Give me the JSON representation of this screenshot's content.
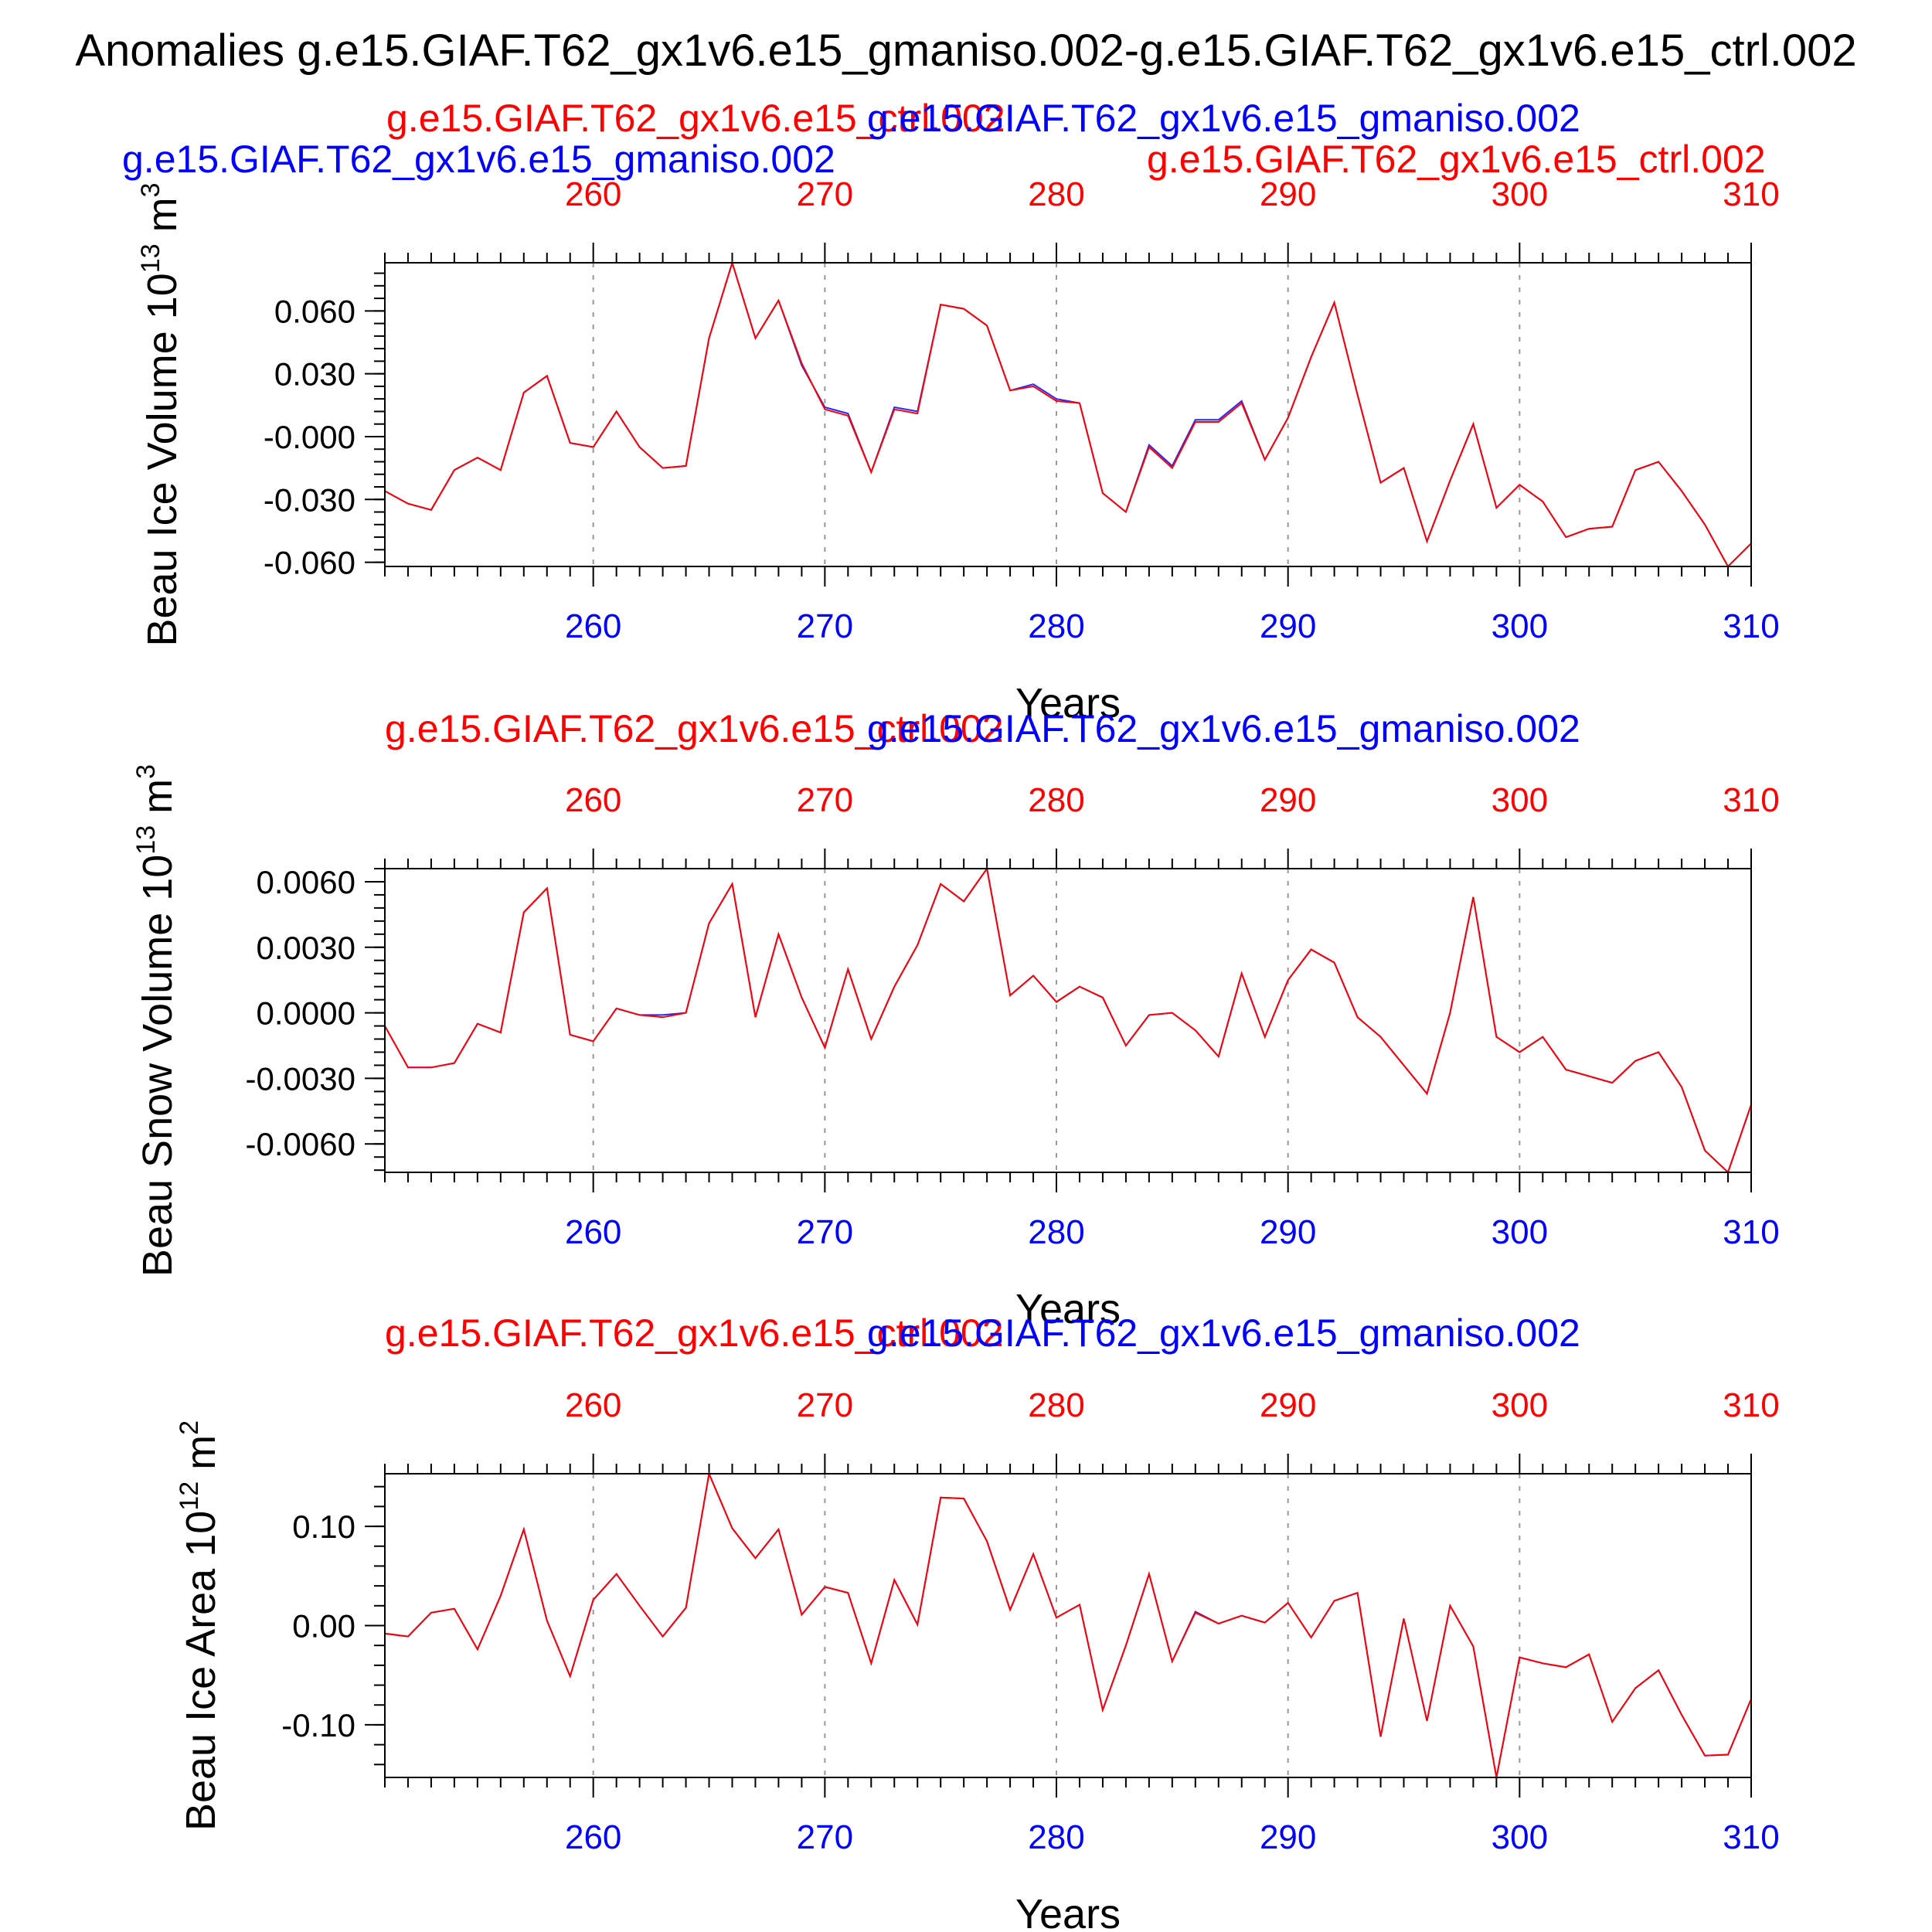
{
  "title": "Anomalies g.e15.GIAF.T62_gx1v6.e15_gmaniso.002-g.e15.GIAF.T62_gx1v6.e15_ctrl.002",
  "chart_data": [
    {
      "type": "line",
      "top_label_blue": "g.e15.GIAF.T62_gx1v6.e15_gmaniso.002",
      "top_label_red": "g.e15.GIAF.T62_gx1v6.e15_ctrl.002",
      "top_label_blue_2": "g.e15.GIAF.T62_gx1v6.e15_gmaniso.002",
      "top_label_red_2": "g.e15.GIAF.T62_gx1v6.e15_ctrl.002",
      "ylabel": "Beau Ice Volume 10",
      "ylabel_exp": "13",
      "ylabel_unit": " m",
      "ylabel_unit_exp": "3",
      "xlabel": "Years",
      "xlim": [
        251,
        310
      ],
      "ylim": [
        -0.062,
        0.083
      ],
      "xticks": [
        "260",
        "270",
        "280",
        "290",
        "300",
        "310"
      ],
      "yticks": [
        "0.060",
        "0.030",
        "-0.000",
        "-0.030",
        "-0.060"
      ],
      "ytick_values": [
        0.06,
        0.03,
        0,
        -0.03,
        -0.06
      ],
      "ytick_minor": 0.006,
      "x": [
        251,
        252,
        253,
        254,
        255,
        256,
        257,
        258,
        259,
        260,
        261,
        262,
        263,
        264,
        265,
        266,
        267,
        268,
        269,
        270,
        271,
        272,
        273,
        274,
        275,
        276,
        277,
        278,
        279,
        280,
        281,
        282,
        283,
        284,
        285,
        286,
        287,
        288,
        289,
        290,
        291,
        292,
        293,
        294,
        295,
        296,
        297,
        298,
        299,
        300,
        301,
        302,
        303,
        304,
        305,
        306,
        307,
        308,
        309,
        310
      ],
      "series": [
        {
          "color": "#ff0000",
          "values": [
            -0.026,
            -0.032,
            -0.035,
            -0.016,
            -0.01,
            -0.016,
            0.021,
            0.029,
            -0.003,
            -0.005,
            0.012,
            -0.005,
            -0.015,
            -0.014,
            0.047,
            0.083,
            0.047,
            0.065,
            0.035,
            0.013,
            0.01,
            -0.017,
            0.013,
            0.011,
            0.063,
            0.061,
            0.053,
            0.022,
            0.024,
            0.017,
            0.016,
            -0.027,
            -0.036,
            -0.005,
            -0.015,
            0.007,
            0.007,
            0.016,
            -0.011,
            0.009,
            0.038,
            0.064,
            0.02,
            -0.022,
            -0.015,
            -0.05,
            -0.021,
            0.006,
            -0.034,
            -0.023,
            -0.031,
            -0.048,
            -0.044,
            -0.043,
            -0.016,
            -0.012,
            -0.026,
            -0.042,
            -0.062,
            -0.051
          ]
        },
        {
          "color": "#0000ff",
          "values": [
            -0.026,
            -0.032,
            -0.035,
            -0.016,
            -0.01,
            -0.016,
            0.021,
            0.029,
            -0.003,
            -0.005,
            0.012,
            -0.005,
            -0.015,
            -0.014,
            0.047,
            0.083,
            0.047,
            0.065,
            0.034,
            0.014,
            0.011,
            -0.017,
            0.014,
            0.012,
            0.063,
            0.061,
            0.053,
            0.022,
            0.025,
            0.018,
            0.016,
            -0.027,
            -0.036,
            -0.004,
            -0.014,
            0.008,
            0.008,
            0.017,
            -0.011,
            0.009,
            0.038,
            0.064,
            0.02,
            -0.022,
            -0.015,
            -0.05,
            -0.021,
            0.006,
            -0.034,
            -0.023,
            -0.031,
            -0.048,
            -0.044,
            -0.043,
            -0.016,
            -0.012,
            -0.026,
            -0.042,
            -0.062,
            -0.051
          ]
        }
      ]
    },
    {
      "type": "line",
      "top_label_red": "g.e15.GIAF.T62_gx1v6.e15_ctrl.002",
      "top_label_blue": "g.e15.GIAF.T62_gx1v6.e15_gmaniso.002",
      "ylabel": "Beau Snow Volume 10",
      "ylabel_exp": "13",
      "ylabel_unit": " m",
      "ylabel_unit_exp": "3",
      "xlabel": "Years",
      "xlim": [
        251,
        310
      ],
      "ylim": [
        -0.0073,
        0.0066
      ],
      "xticks": [
        "260",
        "270",
        "280",
        "290",
        "300",
        "310"
      ],
      "yticks": [
        "0.0060",
        "0.0030",
        "0.0000",
        "-0.0030",
        "-0.0060"
      ],
      "ytick_values": [
        0.006,
        0.003,
        0,
        -0.003,
        -0.006
      ],
      "ytick_minor": 0.0006,
      "x": [
        251,
        252,
        253,
        254,
        255,
        256,
        257,
        258,
        259,
        260,
        261,
        262,
        263,
        264,
        265,
        266,
        267,
        268,
        269,
        270,
        271,
        272,
        273,
        274,
        275,
        276,
        277,
        278,
        279,
        280,
        281,
        282,
        283,
        284,
        285,
        286,
        287,
        288,
        289,
        290,
        291,
        292,
        293,
        294,
        295,
        296,
        297,
        298,
        299,
        300,
        301,
        302,
        303,
        304,
        305,
        306,
        307,
        308,
        309,
        310
      ],
      "series": [
        {
          "color": "#ff0000",
          "values": [
            -0.0006,
            -0.0025,
            -0.0025,
            -0.0023,
            -0.0005,
            -0.0009,
            0.0046,
            0.0057,
            -0.001,
            -0.0013,
            0.0002,
            -0.0001,
            -0.0002,
            0.0,
            0.0041,
            0.0059,
            -0.0002,
            0.0036,
            0.0007,
            -0.0016,
            0.002,
            -0.0012,
            0.0012,
            0.0031,
            0.0059,
            0.0051,
            0.0066,
            0.0008,
            0.0017,
            0.0005,
            0.0012,
            0.0007,
            -0.0015,
            -0.0001,
            0.0,
            -0.0008,
            -0.002,
            0.0018,
            -0.0011,
            0.0015,
            0.0029,
            0.0023,
            -0.0002,
            -0.0011,
            -0.0024,
            -0.0037,
            0.0,
            0.0053,
            -0.0011,
            -0.0018,
            -0.0011,
            -0.0026,
            -0.0029,
            -0.0032,
            -0.0022,
            -0.0018,
            -0.0034,
            -0.0063,
            -0.0073,
            -0.0042
          ]
        },
        {
          "color": "#0000ff",
          "values": [
            -0.0006,
            -0.0025,
            -0.0025,
            -0.0023,
            -0.0005,
            -0.0009,
            0.0046,
            0.0057,
            -0.001,
            -0.0013,
            0.0002,
            -0.0001,
            -0.0001,
            0.0,
            0.0041,
            0.0059,
            -0.0002,
            0.0036,
            0.0007,
            -0.0016,
            0.002,
            -0.0012,
            0.0012,
            0.0031,
            0.0059,
            0.0051,
            0.0066,
            0.0008,
            0.0017,
            0.0005,
            0.0012,
            0.0007,
            -0.0015,
            -0.0001,
            0.0,
            -0.0008,
            -0.002,
            0.0018,
            -0.0011,
            0.0015,
            0.0029,
            0.0023,
            -0.0002,
            -0.0011,
            -0.0024,
            -0.0037,
            0.0,
            0.0053,
            -0.0011,
            -0.0018,
            -0.0011,
            -0.0026,
            -0.0029,
            -0.0032,
            -0.0022,
            -0.0018,
            -0.0034,
            -0.0063,
            -0.0073,
            -0.0042
          ]
        }
      ]
    },
    {
      "type": "line",
      "top_label_red": "g.e15.GIAF.T62_gx1v6.e15_ctrl.002",
      "top_label_blue": "g.e15.GIAF.T62_gx1v6.e15_gmaniso.002",
      "ylabel": "Beau Ice Area 10",
      "ylabel_exp": "12",
      "ylabel_unit": " m",
      "ylabel_unit_exp": "2",
      "xlabel": "Years",
      "xlim": [
        251,
        310
      ],
      "ylim": [
        -0.153,
        0.153
      ],
      "xticks": [
        "260",
        "270",
        "280",
        "290",
        "300",
        "310"
      ],
      "yticks": [
        "0.10",
        "0.00",
        "-0.10"
      ],
      "ytick_values": [
        0.1,
        0,
        -0.1
      ],
      "ytick_minor": 0.02,
      "x": [
        251,
        252,
        253,
        254,
        255,
        256,
        257,
        258,
        259,
        260,
        261,
        262,
        263,
        264,
        265,
        266,
        267,
        268,
        269,
        270,
        271,
        272,
        273,
        274,
        275,
        276,
        277,
        278,
        279,
        280,
        281,
        282,
        283,
        284,
        285,
        286,
        287,
        288,
        289,
        290,
        291,
        292,
        293,
        294,
        295,
        296,
        297,
        298,
        299,
        300,
        301,
        302,
        303,
        304,
        305,
        306,
        307,
        308,
        309,
        310
      ],
      "series": [
        {
          "color": "#ff0000",
          "values": [
            -0.008,
            -0.011,
            0.013,
            0.017,
            -0.024,
            0.03,
            0.097,
            0.005,
            -0.051,
            0.026,
            0.052,
            0.02,
            -0.011,
            0.018,
            0.153,
            0.098,
            0.068,
            0.097,
            0.011,
            0.039,
            0.033,
            -0.038,
            0.046,
            0.001,
            0.129,
            0.128,
            0.085,
            0.016,
            0.072,
            0.008,
            0.021,
            -0.085,
            -0.02,
            0.052,
            -0.036,
            0.013,
            0.002,
            0.01,
            0.003,
            0.023,
            -0.012,
            0.025,
            0.033,
            -0.112,
            0.007,
            -0.096,
            0.02,
            -0.021,
            -0.153,
            -0.032,
            -0.038,
            -0.042,
            -0.029,
            -0.097,
            -0.063,
            -0.045,
            -0.09,
            -0.131,
            -0.13,
            -0.074
          ]
        },
        {
          "color": "#0000ff",
          "values": [
            -0.008,
            -0.011,
            0.013,
            0.017,
            -0.024,
            0.03,
            0.097,
            0.005,
            -0.051,
            0.026,
            0.052,
            0.02,
            -0.011,
            0.018,
            0.153,
            0.098,
            0.068,
            0.097,
            0.011,
            0.039,
            0.033,
            -0.038,
            0.046,
            0.001,
            0.129,
            0.128,
            0.085,
            0.016,
            0.072,
            0.008,
            0.021,
            -0.085,
            -0.02,
            0.052,
            -0.036,
            0.014,
            0.002,
            0.01,
            0.003,
            0.023,
            -0.012,
            0.025,
            0.033,
            -0.112,
            0.007,
            -0.096,
            0.02,
            -0.021,
            -0.153,
            -0.032,
            -0.038,
            -0.042,
            -0.029,
            -0.097,
            -0.063,
            -0.045,
            -0.09,
            -0.131,
            -0.13,
            -0.074
          ]
        }
      ]
    }
  ]
}
